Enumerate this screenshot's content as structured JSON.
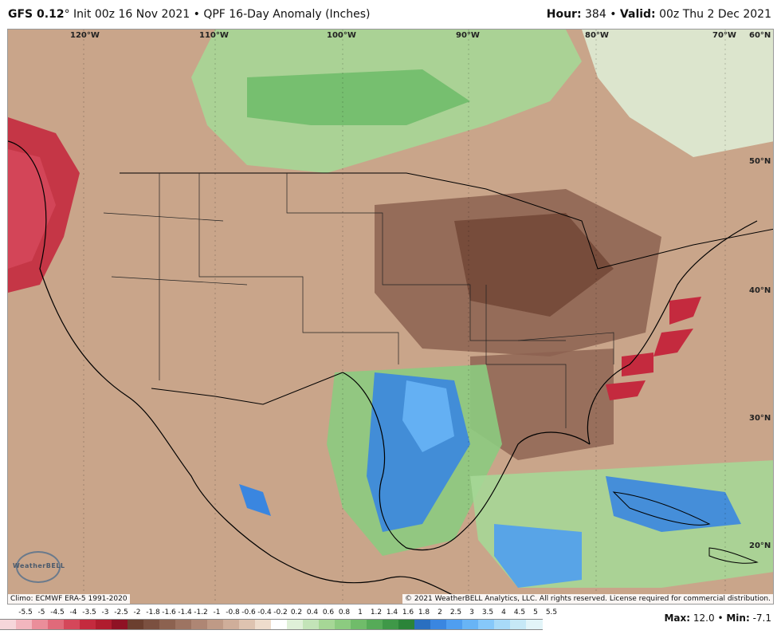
{
  "header": {
    "model": "GFS 0.12",
    "degree": "°",
    "init": "Init 00z 16 Nov 2021",
    "separator": "•",
    "product": "QPF 16-Day Anomaly (Inches)",
    "hour_label": "Hour:",
    "hour_value": "384",
    "valid_label": "Valid:",
    "valid_value": "00z Thu 2 Dec 2021"
  },
  "map": {
    "longitude_labels": [
      "120°W",
      "110°W",
      "100°W",
      "90°W",
      "80°W",
      "70°W"
    ],
    "latitude_labels": [
      "60°N",
      "50°N",
      "40°N",
      "30°N",
      "20°N"
    ],
    "climo_text": "Climo: ECMWF ERA-5 1991-2020",
    "copyright_text": "© 2021 WeatherBELL Analytics, LLC. All rights reserved. License required for commercial distribution.",
    "logo_text": "WeatherBELL",
    "logo_icon": "weatherbell-logo-icon"
  },
  "colorbar": {
    "ticks": [
      "-5.5",
      "-5",
      "-4.5",
      "-4",
      "-3.5",
      "-3",
      "-2.5",
      "-2",
      "-1.8",
      "-1.6",
      "-1.4",
      "-1.2",
      "-1",
      "-0.8",
      "-0.6",
      "-0.4",
      "-0.2",
      "0.2",
      "0.4",
      "0.6",
      "0.8",
      "1",
      "1.2",
      "1.4",
      "1.6",
      "1.8",
      "2",
      "2.5",
      "3",
      "3.5",
      "4",
      "4.5",
      "5",
      "5.5"
    ],
    "colors": [
      "#f6d6da",
      "#f2b6be",
      "#ea8e9a",
      "#e06a7a",
      "#d4475a",
      "#c42a3e",
      "#b01c2e",
      "#8f1224",
      "#6b3f2f",
      "#7b5040",
      "#8c6250",
      "#9d7462",
      "#ae8674",
      "#bf9a86",
      "#cfae9a",
      "#dec3b0",
      "#eedccc",
      "#ffffff",
      "#dff0d8",
      "#c3e4b8",
      "#a6d796",
      "#8ccb80",
      "#70bc6a",
      "#56ab58",
      "#3f9848",
      "#2b8439",
      "#2a6fc0",
      "#3a86e0",
      "#4f9ef0",
      "#68b4f6",
      "#86c8fa",
      "#a8daf8",
      "#c6e8f6",
      "#e2f4f8"
    ]
  },
  "stats": {
    "max_label": "Max:",
    "max_value": "12.0",
    "separator": "•",
    "min_label": "Min:",
    "min_value": "-7.1"
  }
}
